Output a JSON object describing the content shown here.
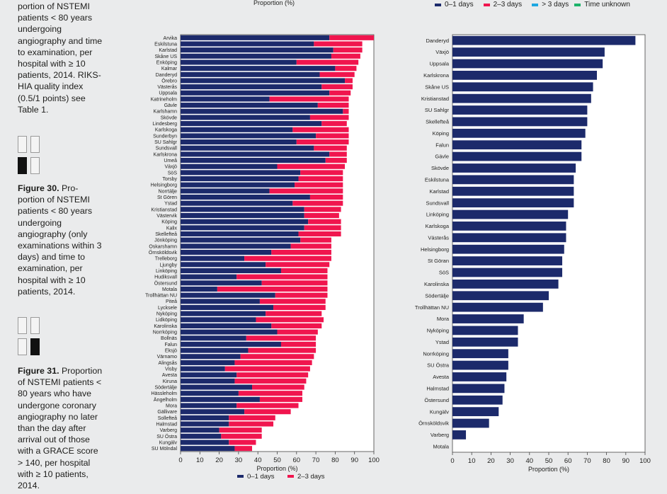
{
  "captions": {
    "fig29_tail": "portion of NSTEMI patients < 80 years undergoing angiography and time to examination, per hospital with ≥ 10 patients, 2014. RIKS-HIA quality index (0.5/1 points) see Table 1.",
    "fig30_label": "Figure 30.",
    "fig30_text": " Pro-portion of NSTEMI patients < 80 years undergoing angiography (only examinations within 3 days) and time to examination, per hospital with ≥ 10 patients, 2014.",
    "fig31_label": "Figure 31.",
    "fig31_text": " Proportion of NSTEMI patients < 80 years who have undergone coronary angiography no later than the day after arrival out of those with a GRACE score > 140, per hospital with ≥ 10 patients, 2014."
  },
  "colors": {
    "navy": "#1c2a6b",
    "red": "#f0154e",
    "cyan": "#1ea7e1",
    "green": "#1db36a"
  },
  "chart_data": [
    {
      "type": "bar",
      "orientation": "horizontal",
      "stacked": true,
      "top_label": "Proportion (%)",
      "xlabel": "Proportion (%)",
      "xlim": [
        0,
        100
      ],
      "xticks": [
        0,
        10,
        20,
        30,
        40,
        50,
        60,
        70,
        80,
        90,
        100
      ],
      "legend": [
        "0–1 days",
        "2–3 days"
      ],
      "categories": [
        "Arvika",
        "Eskilstuna",
        "Karlstad",
        "Skåne US",
        "Enköping",
        "Kalmar",
        "Danderyd",
        "Örebro",
        "Västerås",
        "Uppsala",
        "Katrineholm",
        "Gävle",
        "Karlshamn",
        "Skövde",
        "Lindesberg",
        "Karlskoga",
        "Sunderbyn",
        "SU Sahlgr",
        "Sundsvall",
        "Karlskrona",
        "Umeå",
        "Växjö",
        "SöS",
        "Torsby",
        "Helsingborg",
        "Norrtälje",
        "St Gören",
        "Ystad",
        "Kristianstad",
        "Västervik",
        "Köping",
        "Kalix",
        "Skellefteå",
        "Jönköping",
        "Oskarshamn",
        "Örnsköldsvik",
        "Trelleborg",
        "Ljungby",
        "Linköping",
        "Hudiksvall",
        "Östersund",
        "Motala",
        "Trollhättan NU",
        "Piteå",
        "Lycksele",
        "Nyköping",
        "Lidköping",
        "Karolinska",
        "Norrköping",
        "Bollnäs",
        "Falun",
        "Eksjö",
        "Värnamo",
        "Alingsås",
        "Visby",
        "Avesta",
        "Kiruna",
        "Södertälje",
        "Hässleholm",
        "Ängelholm",
        "Mora",
        "Gällivare",
        "Sollefteå",
        "Halmstad",
        "Varberg",
        "SU Östra",
        "Kungälv",
        "SU Mölndal"
      ],
      "series": [
        {
          "name": "0–1 days",
          "values": [
            77,
            69,
            79,
            78,
            60,
            80,
            72,
            85,
            73,
            77,
            46,
            71,
            84,
            67,
            73,
            58,
            70,
            60,
            69,
            77,
            75,
            50,
            62,
            61,
            59,
            46,
            67,
            58,
            64,
            64,
            66,
            64,
            61,
            62,
            57,
            47,
            33,
            44,
            52,
            29,
            42,
            19,
            49,
            41,
            48,
            44,
            39,
            47,
            50,
            34,
            52,
            35,
            31,
            28,
            23,
            29,
            28,
            37,
            30,
            41,
            29,
            33,
            25,
            25,
            20,
            21,
            25,
            28
          ],
          "data_labels": []
        },
        {
          "name": "2–3 days",
          "values": [
            23,
            25,
            15,
            15,
            32,
            11,
            18,
            4,
            16,
            11,
            41,
            16,
            3,
            20,
            13,
            29,
            17,
            27,
            17,
            9,
            11,
            35,
            22,
            23,
            25,
            38,
            17,
            26,
            19,
            18,
            17,
            19,
            22,
            16,
            21,
            31,
            45,
            33,
            24,
            47,
            34,
            57,
            27,
            34,
            27,
            29,
            35,
            26,
            21,
            36,
            18,
            35,
            38,
            40,
            44,
            37,
            37,
            27,
            33,
            22,
            32,
            24,
            24,
            23,
            22,
            21,
            14,
            9
          ]
        }
      ]
    },
    {
      "type": "bar",
      "orientation": "horizontal",
      "xlabel": "Proportion (%)",
      "xlim": [
        0,
        100
      ],
      "xticks": [
        0,
        10,
        20,
        30,
        40,
        50,
        60,
        70,
        80,
        90,
        100
      ],
      "legend": [
        "0–1 days",
        "2–3 days",
        "> 3 days",
        "Time unknown"
      ],
      "categories": [
        "Danderyd",
        "Växjö",
        "Uppsala",
        "Karlskrona",
        "Skåne US",
        "Kristianstad",
        "SU Sahlgr",
        "Skellefteå",
        "Köping",
        "Falun",
        "Gävle",
        "Skövde",
        "Eskilstuna",
        "Karlstad",
        "Sundsvall",
        "Linköping",
        "Karlskoga",
        "Västerås",
        "Helsingborg",
        "St Göran",
        "SöS",
        "Karolinska",
        "Södertälje",
        "Trollhättan NU",
        "Mora",
        "Nyköping",
        "Ystad",
        "Norrköping",
        "SU Östra",
        "Avesta",
        "Halmstad",
        "Östersund",
        "Kungälv",
        "Örnsköldsvik",
        "Varberg",
        "Motala"
      ],
      "series": [
        {
          "name": "0–1 days",
          "values": [
            95,
            79,
            78,
            75,
            73,
            72,
            70,
            70,
            69,
            67,
            67,
            64,
            63,
            63,
            63,
            60,
            59,
            59,
            58,
            57,
            57,
            55,
            50,
            47,
            37,
            34,
            34,
            29,
            29,
            28,
            27,
            26,
            24,
            19,
            7,
            0
          ]
        }
      ]
    }
  ]
}
